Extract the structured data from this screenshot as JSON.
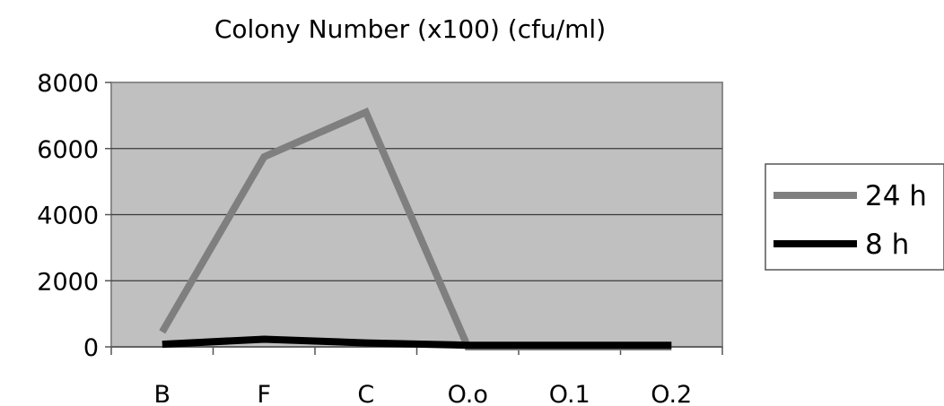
{
  "chart_data": {
    "type": "line",
    "title": "Colony Number (x100) (cfu/ml)",
    "xlabel": "",
    "ylabel": "",
    "categories": [
      "B",
      "F",
      "C",
      "O.o",
      "O.1",
      "O.2"
    ],
    "ylim": [
      0,
      8000
    ],
    "yticks": [
      "0",
      "2000",
      "4000",
      "6000",
      "8000"
    ],
    "grid": true,
    "legend_position": "right",
    "plot_background": "#c0c0c0",
    "series": [
      {
        "name": "24 h",
        "values": [
          450,
          5750,
          7100,
          0,
          0,
          0
        ],
        "color": "#7f7f7f"
      },
      {
        "name": "8 h",
        "values": [
          80,
          230,
          120,
          50,
          50,
          50
        ],
        "color": "#000000"
      }
    ]
  }
}
